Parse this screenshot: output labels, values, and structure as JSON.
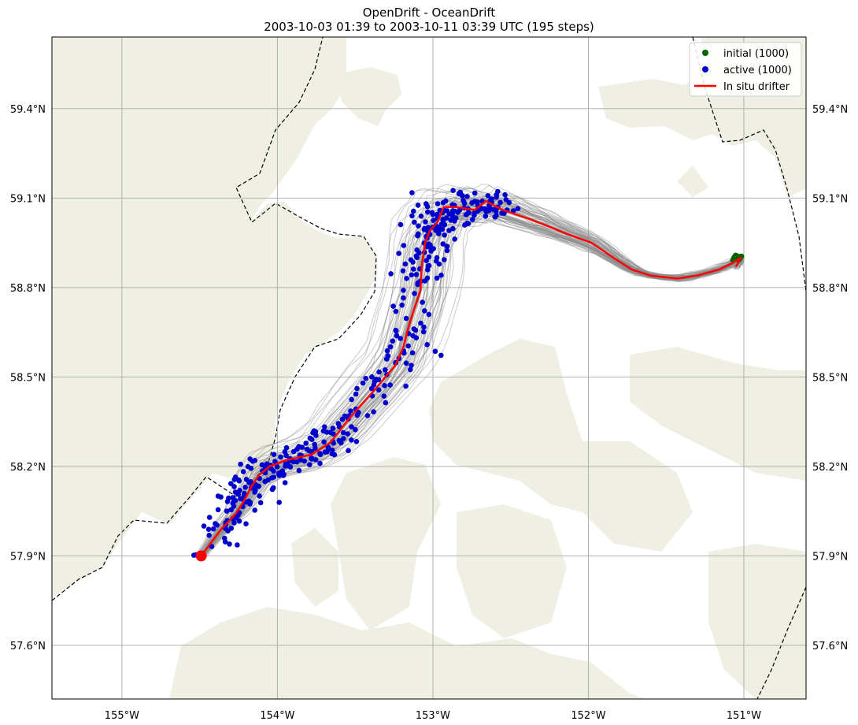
{
  "title": "OpenDrift - OceanDrift",
  "subtitle": "2003-10-03 01:39 to 2003-10-11 03:39 UTC (195 steps)",
  "map": {
    "lon_range": [
      -155.45,
      -150.6
    ],
    "lat_range": [
      57.42,
      59.64
    ],
    "land_color": "#efefe3",
    "grid_color": "#b0b0b0",
    "trajectory_color": "#8c8c8c",
    "lon_ticks": [
      {
        "value": -155,
        "label": "155°W"
      },
      {
        "value": -154,
        "label": "154°W"
      },
      {
        "value": -153,
        "label": "153°W"
      },
      {
        "value": -152,
        "label": "152°W"
      },
      {
        "value": -151,
        "label": "151°W"
      }
    ],
    "lat_ticks": [
      {
        "value": 57.6,
        "label": "57.6°N"
      },
      {
        "value": 57.9,
        "label": "57.9°N"
      },
      {
        "value": 58.2,
        "label": "58.2°N"
      },
      {
        "value": 58.5,
        "label": "58.5°N"
      },
      {
        "value": 58.8,
        "label": "58.8°N"
      },
      {
        "value": 59.1,
        "label": "59.1°N"
      },
      {
        "value": 59.4,
        "label": "59.4°N"
      }
    ]
  },
  "legend": {
    "position": "top-right",
    "items": [
      {
        "label": "initial (1000)",
        "color": "#006400",
        "kind": "marker"
      },
      {
        "label": "active (1000)",
        "color": "#0000cd",
        "kind": "marker"
      },
      {
        "label": "In situ drifter",
        "color": "#ff0000",
        "kind": "line"
      }
    ]
  },
  "drifter": {
    "color": "#ff0000",
    "track": [
      [
        -154.49,
        57.9
      ],
      [
        -154.36,
        57.99
      ],
      [
        -154.27,
        58.04
      ],
      [
        -154.22,
        58.08
      ],
      [
        -154.17,
        58.13
      ],
      [
        -154.12,
        58.17
      ],
      [
        -154.05,
        58.2
      ],
      [
        -153.95,
        58.22
      ],
      [
        -153.78,
        58.24
      ],
      [
        -153.66,
        58.28
      ],
      [
        -153.54,
        58.36
      ],
      [
        -153.37,
        58.46
      ],
      [
        -153.24,
        58.54
      ],
      [
        -153.19,
        58.6
      ],
      [
        -153.15,
        58.68
      ],
      [
        -153.08,
        58.79
      ],
      [
        -153.07,
        58.88
      ],
      [
        -153.05,
        58.95
      ],
      [
        -153.02,
        58.99
      ],
      [
        -152.97,
        59.02
      ],
      [
        -152.93,
        59.07
      ],
      [
        -152.85,
        59.07
      ],
      [
        -152.73,
        59.06
      ],
      [
        -152.66,
        59.09
      ],
      [
        -152.55,
        59.06
      ],
      [
        -152.38,
        59.03
      ],
      [
        -152.28,
        59.01
      ],
      [
        -152.14,
        58.98
      ],
      [
        -151.98,
        58.95
      ],
      [
        -151.84,
        58.9
      ],
      [
        -151.72,
        58.86
      ],
      [
        -151.6,
        58.84
      ],
      [
        -151.43,
        58.83
      ],
      [
        -151.3,
        58.84
      ],
      [
        -151.16,
        58.86
      ],
      [
        -151.08,
        58.88
      ],
      [
        -151.02,
        58.9
      ],
      [
        -151.05,
        58.87
      ]
    ],
    "end": [
      -154.49,
      57.9
    ]
  },
  "initial_seed": [
    -151.04,
    58.9
  ]
}
